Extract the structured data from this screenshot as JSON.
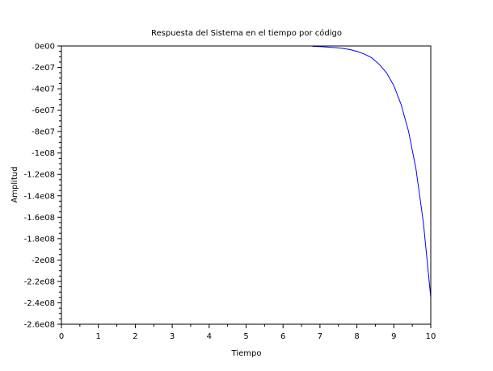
{
  "chart_data": {
    "type": "line",
    "title": "Respuesta del Sistema en el tiempo por código",
    "xlabel": "Tiempo",
    "ylabel": "Amplitud",
    "xlim": [
      0,
      10
    ],
    "ylim": [
      -260000000,
      0
    ],
    "x_ticks": [
      0,
      1,
      2,
      3,
      4,
      5,
      6,
      7,
      8,
      9,
      10
    ],
    "x_tick_labels": [
      "0",
      "1",
      "2",
      "3",
      "4",
      "5",
      "6",
      "7",
      "8",
      "9",
      "10"
    ],
    "y_ticks": [
      0,
      -20000000,
      -40000000,
      -60000000,
      -80000000,
      -100000000,
      -120000000,
      -140000000,
      -160000000,
      -180000000,
      -200000000,
      -220000000,
      -240000000,
      -260000000
    ],
    "y_tick_labels": [
      "0e00",
      "-2e07",
      "-4e07",
      "-6e07",
      "-8e07",
      "-1e08",
      "-1.2e08",
      "-1.4e08",
      "-1.6e08",
      "-1.8e08",
      "-2e08",
      "-2.2e08",
      "-2.4e08",
      "-2.6e08"
    ],
    "grid": false,
    "line_color": "#0000ff",
    "series": [
      {
        "x": [
          6.8,
          7.0,
          7.2,
          7.4,
          7.6,
          7.8,
          8.0,
          8.2,
          8.4,
          8.6,
          8.8,
          9.0,
          9.2,
          9.4,
          9.6,
          9.8,
          10.0
        ],
        "y": [
          -400000,
          -600000,
          -1000000,
          -1500000,
          -2200000,
          -3300000,
          -5000000,
          -7500000,
          -11000000,
          -17000000,
          -25000000,
          -37000000,
          -55000000,
          -80000000,
          -115000000,
          -165000000,
          -235000000
        ]
      }
    ]
  }
}
